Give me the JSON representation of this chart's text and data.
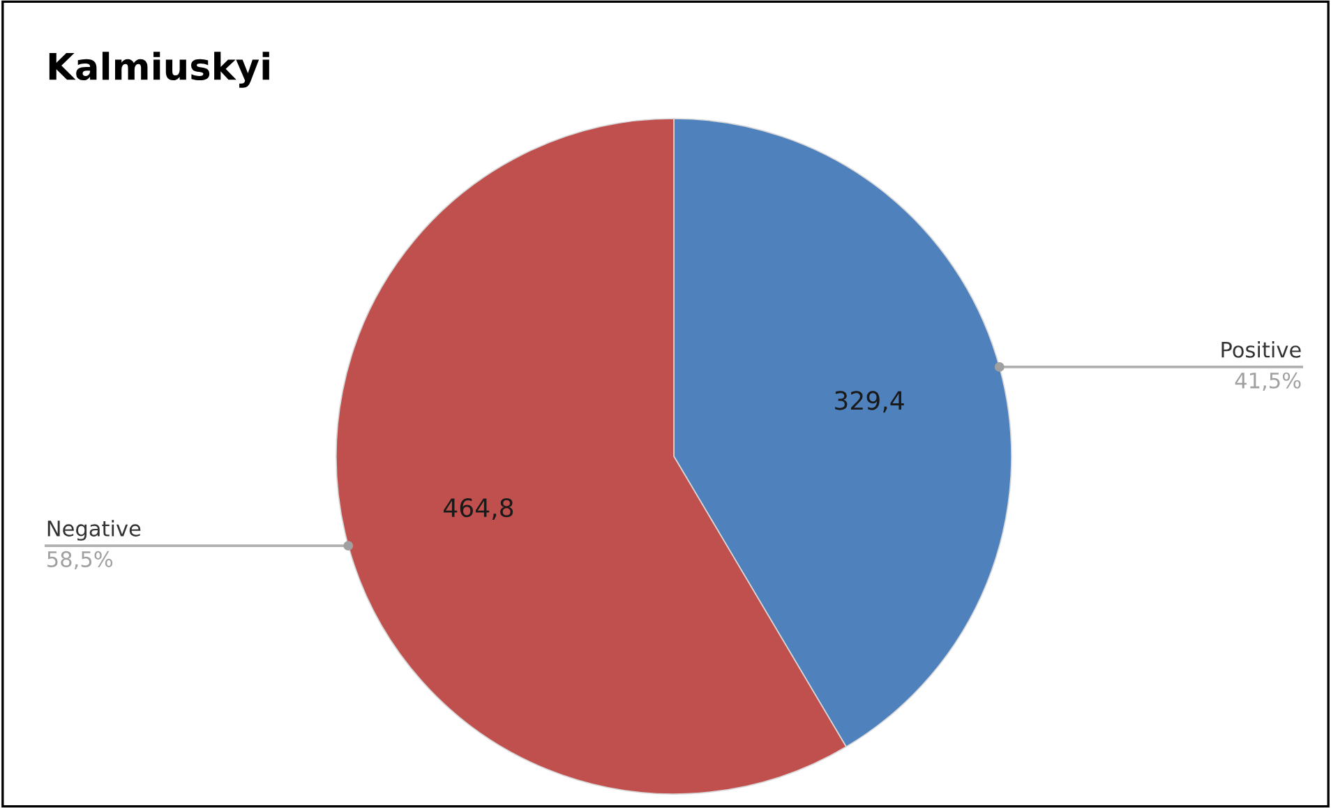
{
  "chart_data": {
    "type": "pie",
    "title": "Kalmiuskyi",
    "categories": [
      "Positive",
      "Negative"
    ],
    "values": [
      329.4,
      464.8
    ],
    "colors": [
      "#4f81bd",
      "#c0504d"
    ],
    "value_labels": [
      "329,4",
      "464,8"
    ],
    "annotations": [
      "41,5%",
      "58,5%"
    ]
  }
}
